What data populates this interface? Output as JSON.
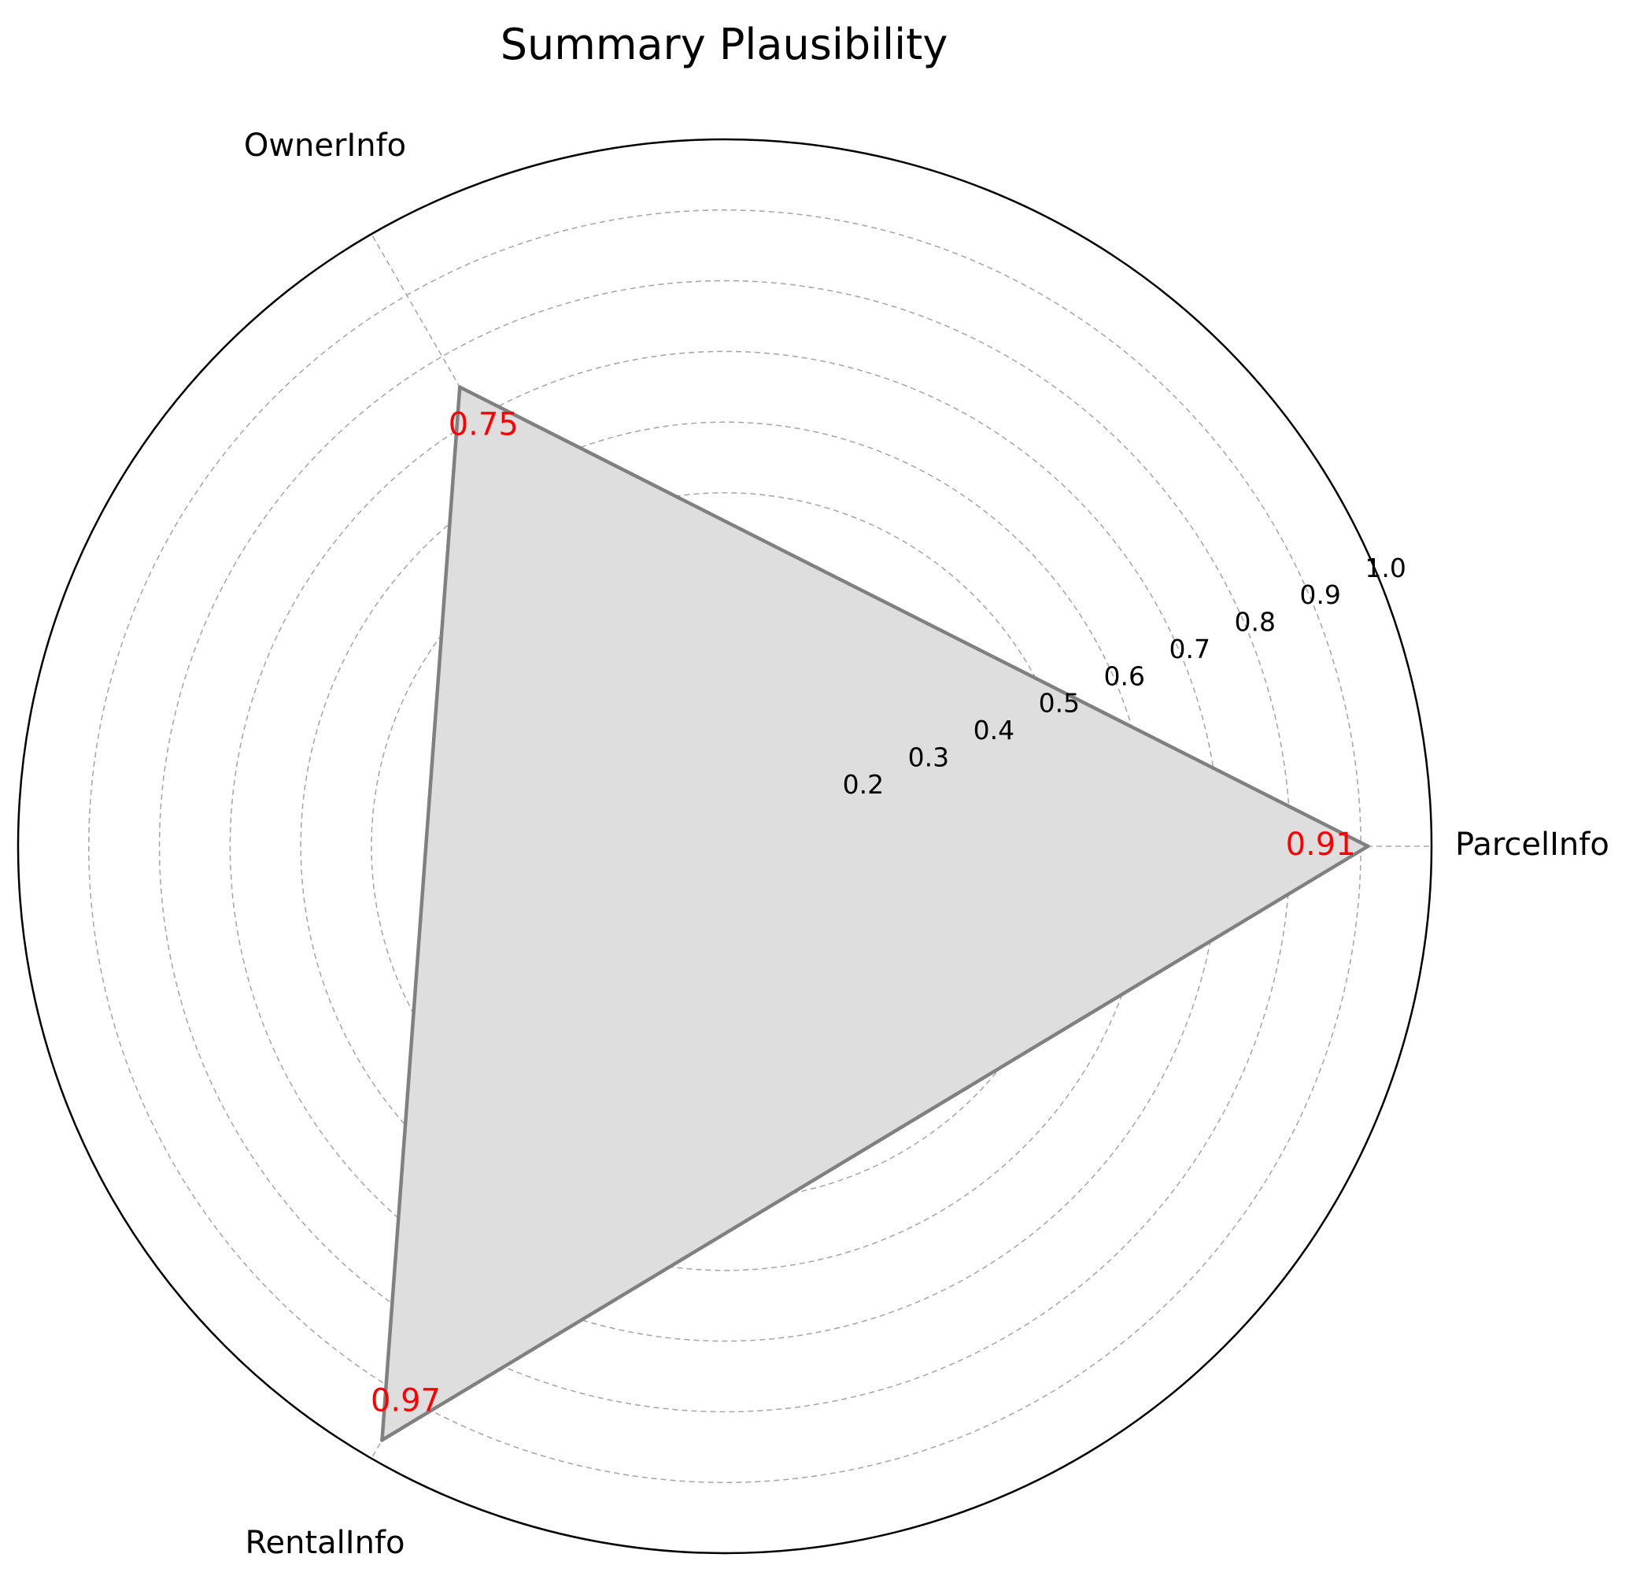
{
  "chart_data": {
    "type": "radar",
    "title": "Summary Plausibility",
    "categories": [
      "ParcelInfo",
      "OwnerInfo",
      "RentalInfo"
    ],
    "series": [
      {
        "values": [
          0.91,
          0.75,
          0.97
        ]
      }
    ],
    "data_labels": [
      "0.91",
      "0.75",
      "0.97"
    ],
    "r_ticks": [
      0.2,
      0.3,
      0.4,
      0.5,
      0.6,
      0.7,
      0.8,
      0.9,
      1.0
    ],
    "r_tick_labels": [
      "0.2",
      "0.3",
      "0.4",
      "0.5",
      "0.6",
      "0.7",
      "0.8",
      "0.9",
      "1.0"
    ],
    "rlim": [
      0,
      1.0
    ],
    "grid": true,
    "colors": {
      "line": "#808080",
      "fill": "#dedede",
      "grid": "#a9a9a9",
      "data_label": "#ff0000",
      "outer_frame": "#000000"
    }
  }
}
